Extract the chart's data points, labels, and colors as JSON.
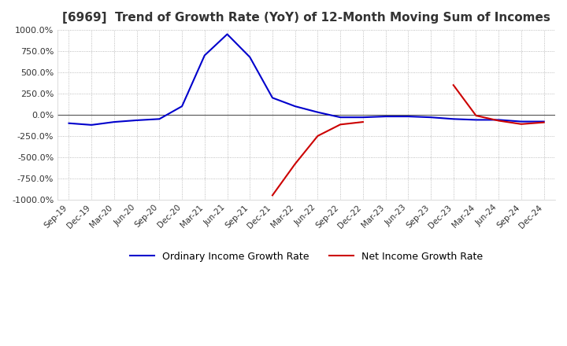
{
  "title": "[6969]  Trend of Growth Rate (YoY) of 12-Month Moving Sum of Incomes",
  "title_fontsize": 11,
  "ylim": [
    -1000,
    1000
  ],
  "yticks": [
    -1000,
    -750,
    -500,
    -250,
    0,
    250,
    500,
    750,
    1000
  ],
  "ytick_labels": [
    "-1000.0%",
    "-750.0%",
    "-500.0%",
    "-250.0%",
    "0.0%",
    "250.0%",
    "500.0%",
    "750.0%",
    "1000.0%"
  ],
  "background_color": "#ffffff",
  "plot_bg_color": "#ffffff",
  "grid_color": "#aaaaaa",
  "legend_labels": [
    "Ordinary Income Growth Rate",
    "Net Income Growth Rate"
  ],
  "legend_colors": [
    "#0000cc",
    "#cc0000"
  ],
  "x_labels": [
    "Sep-19",
    "Dec-19",
    "Mar-20",
    "Jun-20",
    "Sep-20",
    "Dec-20",
    "Mar-21",
    "Jun-21",
    "Sep-21",
    "Dec-21",
    "Mar-22",
    "Jun-22",
    "Sep-22",
    "Dec-22",
    "Mar-23",
    "Jun-23",
    "Sep-23",
    "Dec-23",
    "Mar-24",
    "Jun-24",
    "Sep-24",
    "Dec-24"
  ],
  "ordinary_income": [
    -100,
    -120,
    -85,
    -65,
    -50,
    100,
    700,
    950,
    680,
    200,
    100,
    30,
    -30,
    -30,
    -20,
    -20,
    -30,
    -50,
    -60,
    -60,
    -80,
    -80
  ],
  "net_income_seg1_x": [
    9,
    10,
    11,
    12,
    13
  ],
  "net_income_seg1_y": [
    -950,
    -580,
    -250,
    -115,
    -85
  ],
  "net_income_seg2_x": [
    17,
    18,
    19,
    20,
    21
  ],
  "net_income_seg2_y": [
    350,
    -10,
    -70,
    -110,
    -90
  ]
}
